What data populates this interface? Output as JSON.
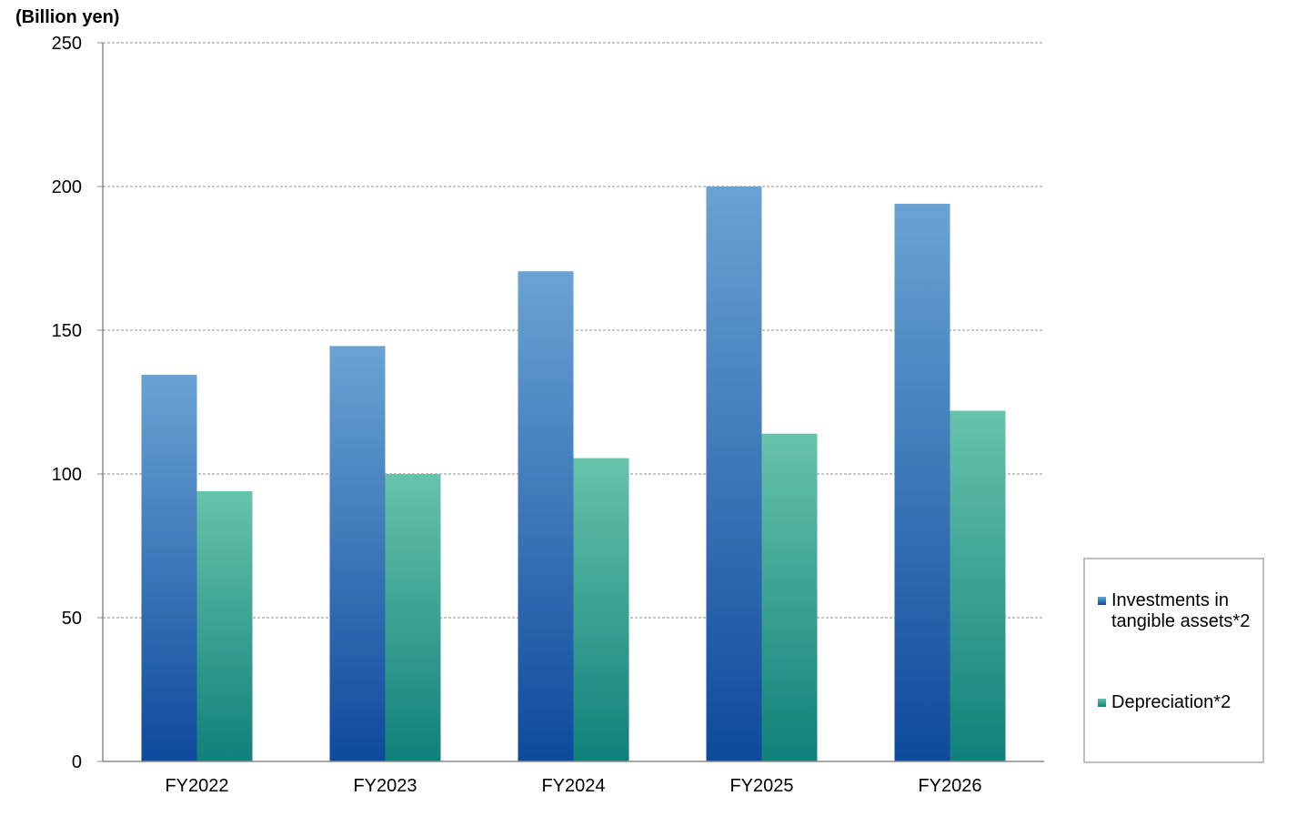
{
  "chart_data": {
    "type": "bar",
    "unit_label": "(Billion yen)",
    "categories": [
      "FY2022",
      "FY2023",
      "FY2024",
      "FY2025",
      "FY2026"
    ],
    "series": [
      {
        "name": "Investments in tangible assets*2",
        "values": [
          134.5,
          144.5,
          170.5,
          200,
          194
        ],
        "color_top": "#6aa3d3",
        "color_bottom": "#0e4a9c"
      },
      {
        "name": "Depreciation*2",
        "values": [
          94,
          100,
          105.5,
          114,
          122
        ],
        "color_top": "#68c3ab",
        "color_bottom": "#10807a"
      }
    ],
    "yticks": [
      0,
      50,
      100,
      150,
      200,
      250
    ],
    "ylim": [
      0,
      250
    ],
    "grid": true,
    "legend_position": "right"
  }
}
